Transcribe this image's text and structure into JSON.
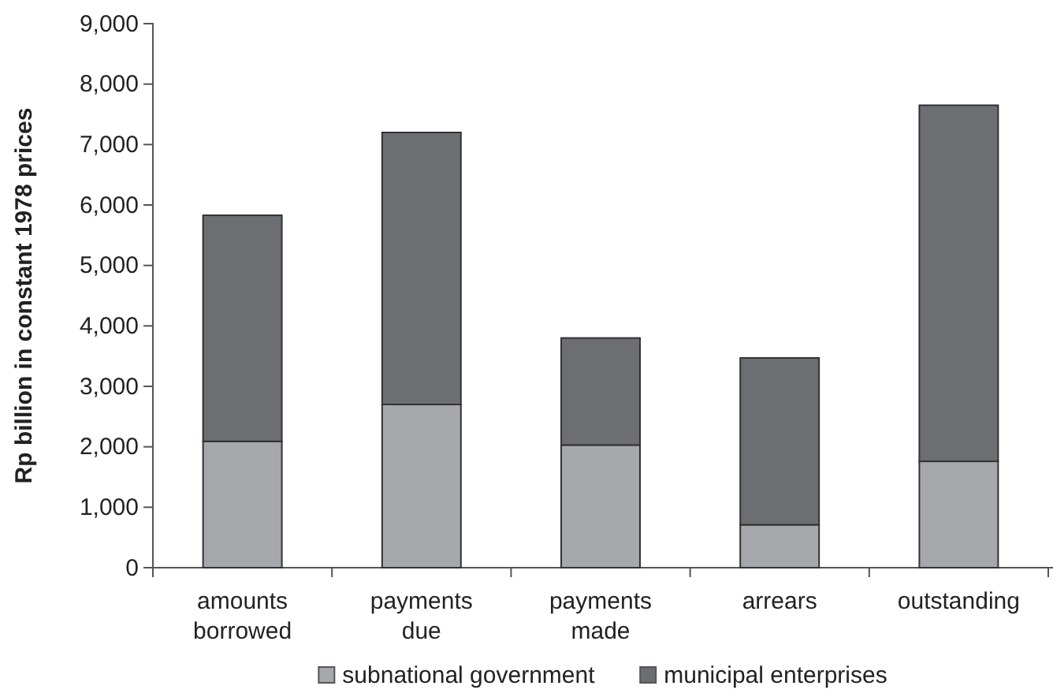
{
  "chart_data": {
    "type": "bar",
    "stacked": true,
    "ylabel": "Rp billion in constant 1978 prices",
    "categories": [
      "amounts borrowed",
      "payments due",
      "payments made",
      "arrears",
      "outstanding"
    ],
    "series": [
      {
        "name": "subnational government",
        "color": "#a7a8ab",
        "values": [
          2090,
          2700,
          2030,
          710,
          1760
        ]
      },
      {
        "name": "municipal enterprises",
        "color": "#6d6e71",
        "values": [
          3740,
          4500,
          1770,
          2760,
          5890
        ]
      }
    ],
    "ylim": [
      0,
      9000
    ],
    "yticks": [
      {
        "value": 0,
        "label": "0"
      },
      {
        "value": 1000,
        "label": "1,000"
      },
      {
        "value": 2000,
        "label": "2,000"
      },
      {
        "value": 3000,
        "label": "3,000"
      },
      {
        "value": 4000,
        "label": "4,000"
      },
      {
        "value": 5000,
        "label": "5,000"
      },
      {
        "value": 6000,
        "label": "6,000"
      },
      {
        "value": 7000,
        "label": "7,000"
      },
      {
        "value": 8000,
        "label": "8,000"
      },
      {
        "value": 9000,
        "label": "9,000"
      }
    ],
    "legend": "bottom"
  }
}
